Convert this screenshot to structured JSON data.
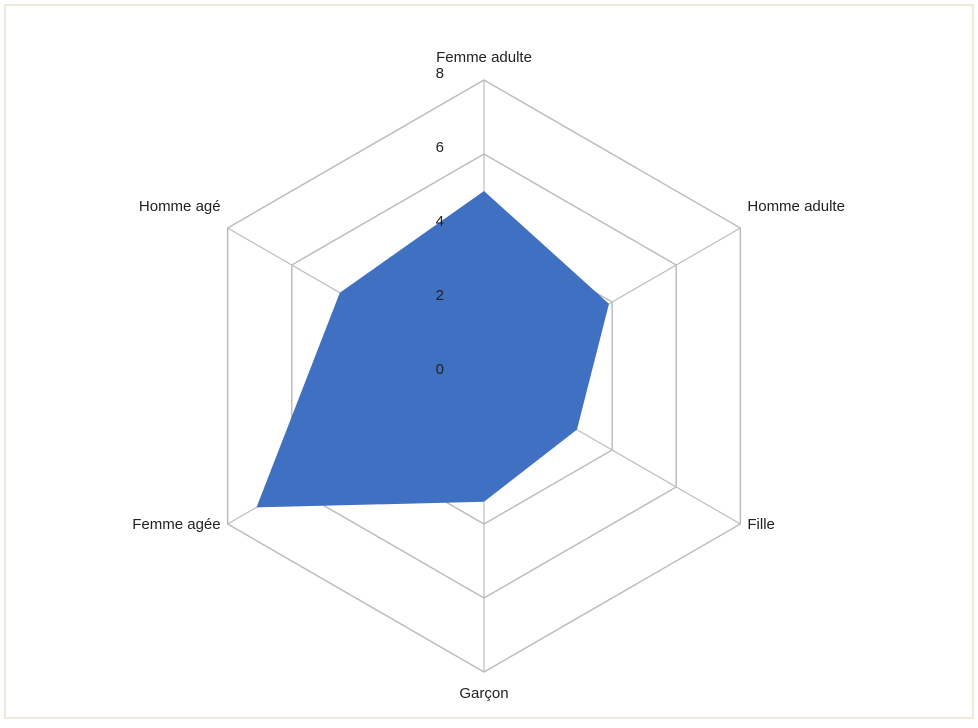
{
  "chart_data": {
    "type": "radar",
    "categories": [
      "Femme adulte",
      "Homme adulte",
      "Fille",
      "Garçon",
      "Femme agée",
      "Homme agé"
    ],
    "values": [
      5,
      3.9,
      2.9,
      3.4,
      7.1,
      4.5
    ],
    "color": "#3f70c1",
    "ylim": [
      0,
      8
    ],
    "yticks": [
      0,
      2,
      4,
      6,
      8
    ],
    "grid": true
  }
}
